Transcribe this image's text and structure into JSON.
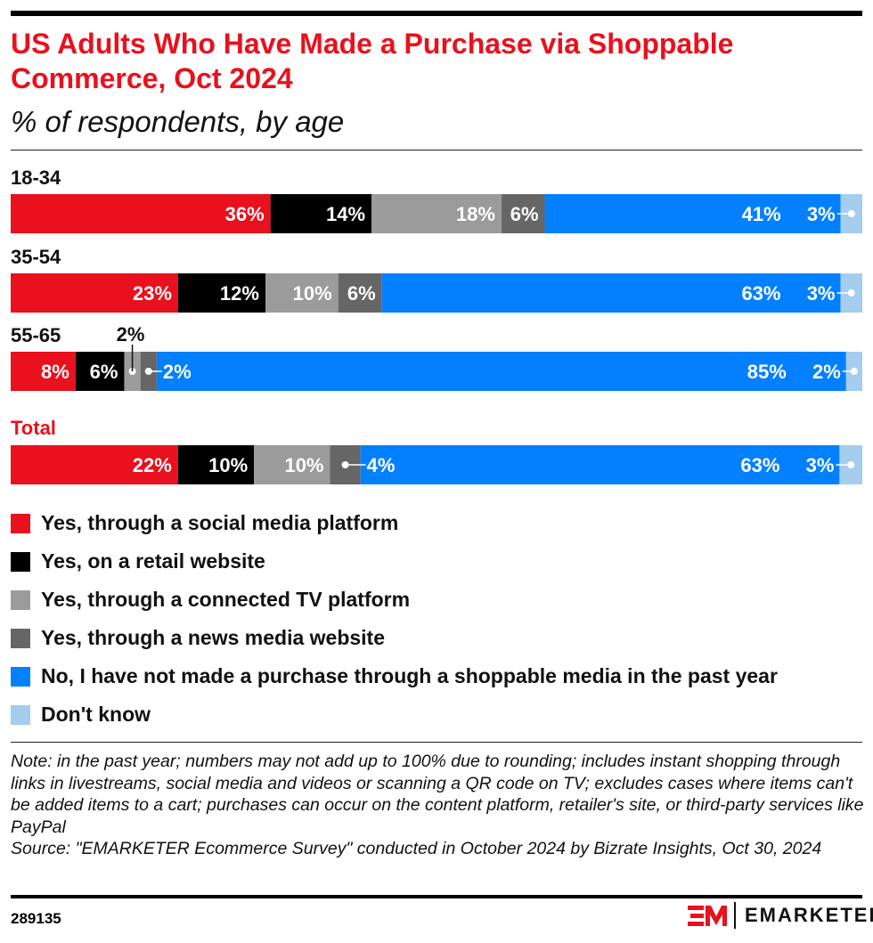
{
  "header": {
    "title": "US Adults Who Have Made a Purchase via Shoppable Commerce, Oct 2024",
    "subtitle": "% of respondents, by age"
  },
  "chart_data": {
    "type": "bar",
    "orientation": "horizontal",
    "stacked": true,
    "normalized": true,
    "categories": [
      "18-34",
      "35-54",
      "55-65",
      "Total"
    ],
    "series": [
      {
        "name": "Yes, through a social media platform",
        "color": "#e8111d",
        "values": [
          36,
          23,
          8,
          22
        ]
      },
      {
        "name": "Yes, on a retail website",
        "color": "#000000",
        "values": [
          14,
          12,
          6,
          10
        ]
      },
      {
        "name": "Yes, through a connected TV platform",
        "color": "#9b9b9b",
        "values": [
          18,
          10,
          2,
          10
        ]
      },
      {
        "name": "Yes, through a news media website",
        "color": "#666666",
        "values": [
          6,
          6,
          2,
          4
        ]
      },
      {
        "name": "No, I have not made a purchase through a shoppable media in the past year",
        "color": "#0380ff",
        "values": [
          41,
          63,
          85,
          63
        ]
      },
      {
        "name": "Don't know",
        "color": "#a4cdee",
        "values": [
          3,
          3,
          2,
          3
        ]
      }
    ],
    "value_suffix": "%",
    "legend": "bottom",
    "grid": false
  },
  "footer": {
    "note": "Note: in the past year; numbers may not add up to 100% due to rounding; includes instant shopping through links in livestreams, social media and videos or scanning a QR code on TV; excludes cases where items can't be added items to a cart; purchases can occur on the content platform, retailer's site, or third-party services like PayPal",
    "source": "Source: \"EMARKETER Ecommerce Survey\" conducted in October 2024 by Bizrate Insights, Oct 30, 2024",
    "id": "289135",
    "brand": "EMARKETER",
    "logo_mark": "EM"
  }
}
